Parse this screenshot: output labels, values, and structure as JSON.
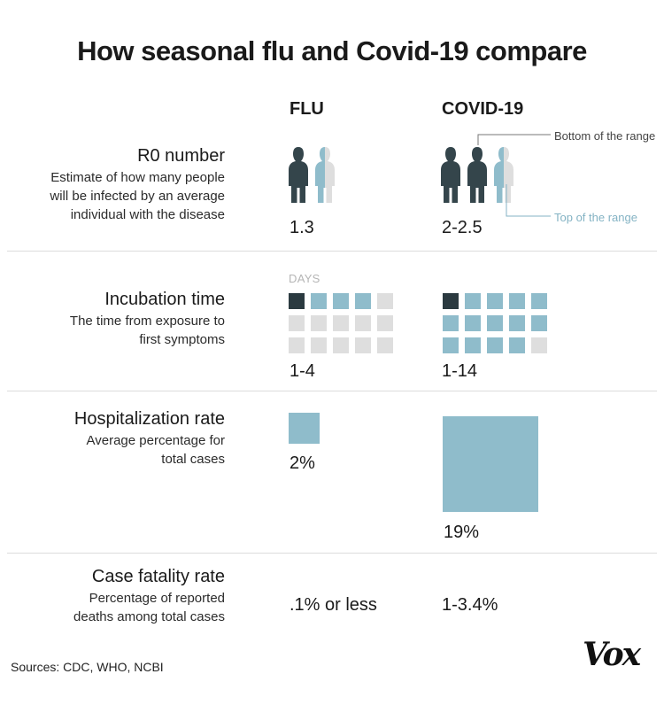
{
  "title": "How seasonal flu and Covid-19 compare",
  "columns": {
    "flu": "FLU",
    "covid": "COVID-19"
  },
  "colors": {
    "dark": "#2b3a40",
    "blue": "#8fbccb",
    "light": "#dedede",
    "divider": "#dcdcdc"
  },
  "icons": {
    "person": "person-figure-icon"
  },
  "rows": {
    "r0": {
      "title": "R0 number",
      "description": [
        "Estimate of how many people",
        "will be infected by an average",
        "individual with the disease"
      ],
      "flu_value": "1.3",
      "covid_value": "2-2.5",
      "annotation_bottom": "Bottom of the range",
      "annotation_top": "Top of the range"
    },
    "incubation": {
      "title": "Incubation time",
      "description": [
        "The time from exposure to",
        "first symptoms"
      ],
      "unit_label": "DAYS",
      "flu_value": "1-4",
      "covid_value": "1-14"
    },
    "hospitalization": {
      "title": "Hospitalization rate",
      "description": [
        "Average percentage for",
        "total cases"
      ],
      "flu_value": "2%",
      "covid_value": "19%"
    },
    "fatality": {
      "title": "Case fatality rate",
      "description": [
        "Percentage of reported",
        "deaths among total cases"
      ],
      "flu_value": ".1% or less",
      "covid_value": "1-3.4%"
    }
  },
  "sources": "Sources: CDC, WHO,  NCBI",
  "logo": "Vox",
  "chart_data": {
    "type": "table",
    "title": "How seasonal flu and Covid-19 compare",
    "columns": [
      "FLU",
      "COVID-19"
    ],
    "rows": [
      {
        "metric": "R0 number",
        "flu": [
          1.3,
          1.3
        ],
        "covid": [
          2,
          2.5
        ]
      },
      {
        "metric": "Incubation time",
        "unit": "DAYS",
        "flu": [
          1,
          4
        ],
        "covid": [
          1,
          14
        ]
      },
      {
        "metric": "Hospitalization rate",
        "flu": 2,
        "covid": 19
      },
      {
        "metric": "Case fatality rate",
        "flu": [
          0,
          0.1
        ],
        "covid": [
          1,
          3.4
        ]
      }
    ],
    "grid_days_total": 15
  }
}
